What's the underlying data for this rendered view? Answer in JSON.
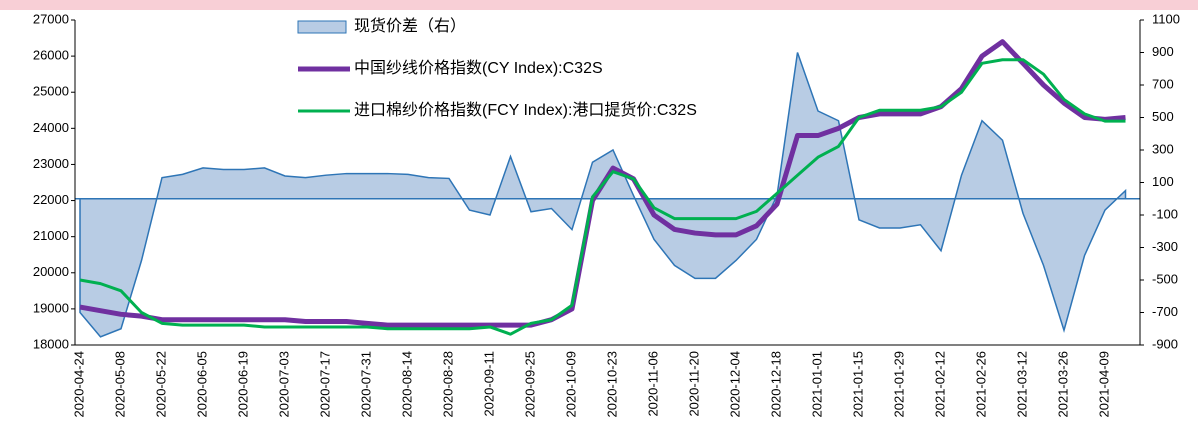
{
  "chart_data": {
    "type": "line",
    "categories": [
      "2020-04-24",
      null,
      "2020-05-08",
      null,
      "2020-05-22",
      null,
      "2020-06-05",
      null,
      "2020-06-19",
      null,
      "2020-07-03",
      null,
      "2020-07-17",
      null,
      "2020-07-31",
      null,
      "2020-08-14",
      null,
      "2020-08-28",
      null,
      "2020-09-11",
      null,
      "2020-09-25",
      null,
      "2020-10-09",
      null,
      "2020-10-23",
      null,
      "2020-11-06",
      null,
      "2020-11-20",
      null,
      "2020-12-04",
      null,
      "2020-12-18",
      null,
      "2021-01-01",
      null,
      "2021-01-15",
      null,
      "2021-01-29",
      null,
      "2021-02-12",
      null,
      "2021-02-26",
      null,
      "2021-03-12",
      null,
      "2021-03-26",
      null,
      "2021-04-09",
      null
    ],
    "series": [
      {
        "name": "现货价差（右）",
        "kind": "area",
        "axis": "y2",
        "color": "#2e75b6",
        "fill": "#b8cce4",
        "values": [
          -700,
          -850,
          -800,
          -380,
          130,
          150,
          190,
          180,
          180,
          190,
          140,
          130,
          145,
          155,
          155,
          155,
          150,
          130,
          125,
          -70,
          -100,
          260,
          -80,
          -60,
          -190,
          225,
          300,
          20,
          -250,
          -410,
          -490,
          -490,
          -380,
          -250,
          20,
          900,
          540,
          480,
          -130,
          -180,
          -180,
          -160,
          -320,
          145,
          480,
          360,
          -90,
          -410,
          -810,
          -350,
          -70,
          50
        ]
      },
      {
        "name": "中国纱线价格指数(CY Index):C32S",
        "kind": "line",
        "axis": "y",
        "color": "#7030a0",
        "width": 5,
        "values": [
          19050,
          18950,
          18850,
          18800,
          18700,
          18700,
          18700,
          18700,
          18700,
          18700,
          18700,
          18650,
          18650,
          18650,
          18600,
          18550,
          18550,
          18550,
          18550,
          18550,
          18550,
          18550,
          18550,
          18700,
          19000,
          22000,
          22900,
          22600,
          21600,
          21200,
          21100,
          21050,
          21050,
          21300,
          21900,
          23800,
          23800,
          24000,
          24300,
          24400,
          24400,
          24400,
          24600,
          25100,
          26000,
          26400,
          25800,
          25200,
          24700,
          24300,
          24250,
          24300
        ]
      },
      {
        "name": "进口棉纱价格指数(FCY Index):港口提货价:C32S",
        "kind": "line",
        "axis": "y",
        "color": "#00b050",
        "width": 3,
        "values": [
          19800,
          19700,
          19500,
          18900,
          18600,
          18550,
          18550,
          18550,
          18550,
          18500,
          18500,
          18500,
          18500,
          18500,
          18500,
          18450,
          18450,
          18450,
          18450,
          18450,
          18500,
          18300,
          18600,
          18700,
          19100,
          22100,
          22800,
          22600,
          21800,
          21500,
          21500,
          21500,
          21500,
          21700,
          22200,
          22700,
          23200,
          23500,
          24300,
          24500,
          24500,
          24500,
          24600,
          25000,
          25800,
          25900,
          25900,
          25500,
          24800,
          24400,
          24200,
          24200
        ]
      }
    ],
    "ylim": [
      18000,
      27000
    ],
    "yticks": [
      18000,
      19000,
      20000,
      21000,
      22000,
      23000,
      24000,
      25000,
      26000,
      27000
    ],
    "y2lim": [
      -900,
      1100
    ],
    "y2ticks": [
      -900,
      -700,
      -500,
      -300,
      -100,
      100,
      300,
      500,
      700,
      900,
      1100
    ]
  }
}
